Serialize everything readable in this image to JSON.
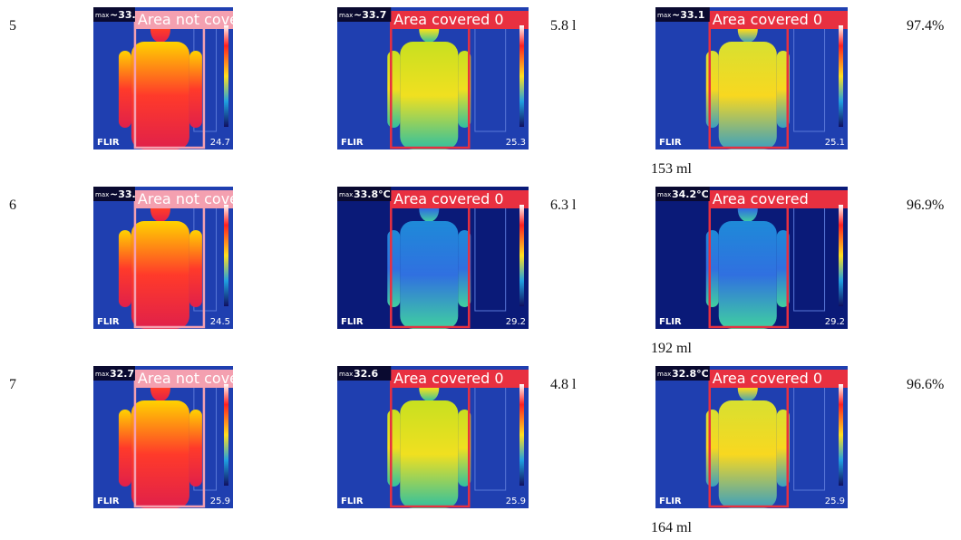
{
  "max_prefix": "max",
  "brand": "FLIR",
  "rows": [
    {
      "number": "5",
      "volume": "5.8 l",
      "amount": "153 ml",
      "percent": "97.4%",
      "images": [
        {
          "max": "~33.",
          "label": "Area not covered",
          "min": "24.7"
        },
        {
          "max": "~33.7",
          "label": "Area covered 0",
          "min": "25.3"
        },
        {
          "max": "~33.1",
          "label": "Area covered 0",
          "min": "25.1"
        }
      ]
    },
    {
      "number": "6",
      "volume": "6.3 l",
      "amount": "192 ml",
      "percent": "96.9%",
      "images": [
        {
          "max": "~33.",
          "label": "Area not covered",
          "min": "24.5"
        },
        {
          "max": "33.8°C",
          "label": "Area covered 0",
          "min": "29.2"
        },
        {
          "max": "34.2°C",
          "label": "Area covered",
          "min": "29.2"
        }
      ]
    },
    {
      "number": "7",
      "volume": "4.8 l",
      "amount": "164 ml",
      "percent": "96.6%",
      "images": [
        {
          "max": "32.7",
          "label": "Area not covered",
          "min": "25.9"
        },
        {
          "max": "32.6",
          "label": "Area covered 0",
          "min": "25.9"
        },
        {
          "max": "32.8°C",
          "label": "Area covered 0",
          "min": "25.9"
        }
      ]
    }
  ]
}
